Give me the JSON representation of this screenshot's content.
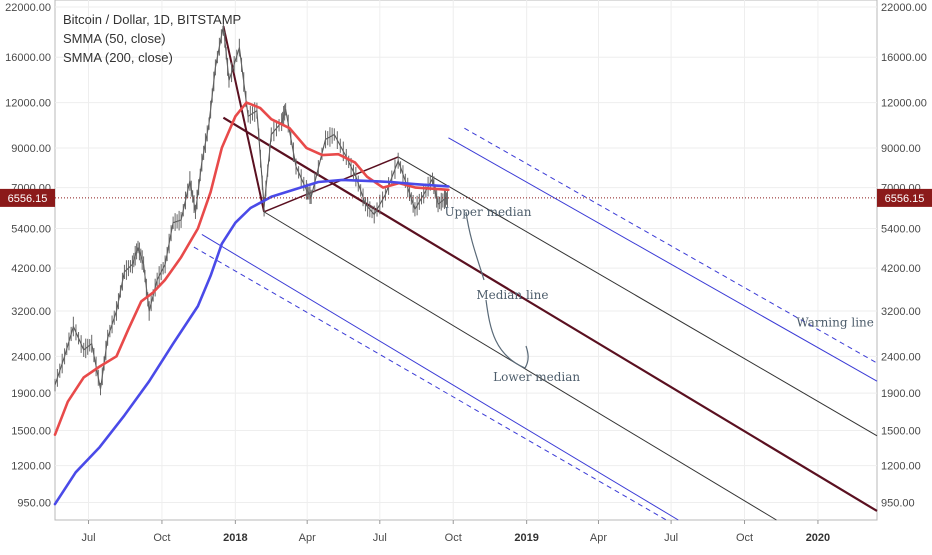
{
  "chart_data": {
    "type": "line",
    "title": "Bitcoin / Dollar, 1D, BITSTAMP",
    "legend": [
      "Bitcoin / Dollar, 1D, BITSTAMP",
      "SMMA (50, close)",
      "SMMA (200, close)"
    ],
    "y_scale": "log",
    "ylim": [
      850,
      23000
    ],
    "xlim": [
      "2017-05-20",
      "2020-03-15"
    ],
    "y_ticks": [
      "22000.00",
      "16000.00",
      "12000.00",
      "9000.00",
      "7000.00",
      "5400.00",
      "4200.00",
      "3200.00",
      "2400.00",
      "1900.00",
      "1500.00",
      "1200.00",
      "950.00"
    ],
    "x_ticks": [
      {
        "date": "2017-07-01",
        "label": "Jul",
        "bold": false
      },
      {
        "date": "2017-10-01",
        "label": "Oct",
        "bold": false
      },
      {
        "date": "2018-01-01",
        "label": "2018",
        "bold": true
      },
      {
        "date": "2018-04-01",
        "label": "Apr",
        "bold": false
      },
      {
        "date": "2018-07-01",
        "label": "Jul",
        "bold": false
      },
      {
        "date": "2018-10-01",
        "label": "Oct",
        "bold": false
      },
      {
        "date": "2019-01-01",
        "label": "2019",
        "bold": true
      },
      {
        "date": "2019-04-01",
        "label": "Apr",
        "bold": false
      },
      {
        "date": "2019-07-01",
        "label": "Jul",
        "bold": false
      },
      {
        "date": "2019-10-01",
        "label": "Oct",
        "bold": false
      },
      {
        "date": "2020-01-01",
        "label": "2020",
        "bold": true
      }
    ],
    "current_price": {
      "value": 6556.15,
      "label": "6556.15",
      "color": "#8b1a1a"
    },
    "series": [
      {
        "name": "Bitcoin / Dollar, 1D, BITSTAMP",
        "kind": "price",
        "color": "#555555",
        "points": [
          [
            "2017-05-20",
            2000
          ],
          [
            "2017-06-01",
            2400
          ],
          [
            "2017-06-12",
            2900
          ],
          [
            "2017-06-25",
            2500
          ],
          [
            "2017-07-05",
            2600
          ],
          [
            "2017-07-16",
            1950
          ],
          [
            "2017-07-25",
            2700
          ],
          [
            "2017-08-05",
            3200
          ],
          [
            "2017-08-15",
            4100
          ],
          [
            "2017-08-25",
            4300
          ],
          [
            "2017-09-01",
            4800
          ],
          [
            "2017-09-08",
            4300
          ],
          [
            "2017-09-15",
            3200
          ],
          [
            "2017-09-25",
            3900
          ],
          [
            "2017-10-05",
            4300
          ],
          [
            "2017-10-15",
            5600
          ],
          [
            "2017-10-25",
            5700
          ],
          [
            "2017-11-05",
            7300
          ],
          [
            "2017-11-12",
            6000
          ],
          [
            "2017-11-20",
            8200
          ],
          [
            "2017-11-29",
            10500
          ],
          [
            "2017-12-07",
            15000
          ],
          [
            "2017-12-17",
            19500
          ],
          [
            "2017-12-24",
            13800
          ],
          [
            "2018-01-06",
            17000
          ],
          [
            "2018-01-17",
            11000
          ],
          [
            "2018-01-28",
            11400
          ],
          [
            "2018-02-06",
            6200
          ],
          [
            "2018-02-15",
            9800
          ],
          [
            "2018-02-28",
            10600
          ],
          [
            "2018-03-05",
            11500
          ],
          [
            "2018-03-18",
            8000
          ],
          [
            "2018-03-31",
            6900
          ],
          [
            "2018-04-06",
            6600
          ],
          [
            "2018-04-24",
            9500
          ],
          [
            "2018-05-05",
            9800
          ],
          [
            "2018-05-20",
            8500
          ],
          [
            "2018-06-01",
            7500
          ],
          [
            "2018-06-13",
            6300
          ],
          [
            "2018-06-24",
            5900
          ],
          [
            "2018-07-08",
            6700
          ],
          [
            "2018-07-24",
            8300
          ],
          [
            "2018-08-05",
            7000
          ],
          [
            "2018-08-14",
            6100
          ],
          [
            "2018-08-25",
            6700
          ],
          [
            "2018-09-05",
            7400
          ],
          [
            "2018-09-12",
            6300
          ],
          [
            "2018-09-20",
            6500
          ],
          [
            "2018-09-25",
            6556
          ]
        ]
      },
      {
        "name": "SMMA (50, close)",
        "kind": "smma",
        "color": "#e84a4a",
        "points": [
          [
            "2017-05-20",
            1460
          ],
          [
            "2017-06-05",
            1800
          ],
          [
            "2017-06-25",
            2100
          ],
          [
            "2017-07-15",
            2250
          ],
          [
            "2017-08-05",
            2400
          ],
          [
            "2017-08-20",
            2850
          ],
          [
            "2017-09-05",
            3400
          ],
          [
            "2017-09-20",
            3600
          ],
          [
            "2017-10-05",
            3900
          ],
          [
            "2017-10-25",
            4500
          ],
          [
            "2017-11-15",
            5400
          ],
          [
            "2017-12-01",
            6800
          ],
          [
            "2017-12-15",
            9000
          ],
          [
            "2018-01-01",
            11000
          ],
          [
            "2018-01-15",
            12000
          ],
          [
            "2018-02-01",
            11600
          ],
          [
            "2018-02-15",
            10800
          ],
          [
            "2018-03-10",
            10200
          ],
          [
            "2018-03-31",
            9000
          ],
          [
            "2018-04-20",
            8600
          ],
          [
            "2018-05-10",
            8650
          ],
          [
            "2018-05-31",
            8200
          ],
          [
            "2018-06-15",
            7500
          ],
          [
            "2018-07-05",
            7000
          ],
          [
            "2018-07-25",
            7200
          ],
          [
            "2018-08-15",
            7000
          ],
          [
            "2018-09-05",
            6950
          ],
          [
            "2018-09-25",
            6900
          ]
        ]
      },
      {
        "name": "SMMA (200, close)",
        "kind": "smma",
        "color": "#4a4ae8",
        "points": [
          [
            "2017-05-20",
            940
          ],
          [
            "2017-06-15",
            1150
          ],
          [
            "2017-07-15",
            1350
          ],
          [
            "2017-08-15",
            1650
          ],
          [
            "2017-09-15",
            2050
          ],
          [
            "2017-10-15",
            2600
          ],
          [
            "2017-11-15",
            3300
          ],
          [
            "2017-12-01",
            4000
          ],
          [
            "2017-12-15",
            4900
          ],
          [
            "2018-01-01",
            5600
          ],
          [
            "2018-01-20",
            6150
          ],
          [
            "2018-02-15",
            6600
          ],
          [
            "2018-03-15",
            6900
          ],
          [
            "2018-04-15",
            7250
          ],
          [
            "2018-05-15",
            7350
          ],
          [
            "2018-06-15",
            7300
          ],
          [
            "2018-07-15",
            7250
          ],
          [
            "2018-08-15",
            7150
          ],
          [
            "2018-09-25",
            7050
          ]
        ]
      }
    ],
    "pitchfork": {
      "pivots": [
        [
          "2017-12-17",
          19500
        ],
        [
          "2018-02-06",
          6000
        ],
        [
          "2018-07-24",
          8500
        ]
      ],
      "lines": [
        {
          "name": "Median line",
          "color": "#5a1020",
          "from": [
            "2017-12-17",
            10900
          ],
          "to": [
            "2020-03-15",
            900
          ]
        },
        {
          "name": "Upper median",
          "color": "#333333",
          "from": [
            "2018-07-24",
            8500
          ],
          "to": [
            "2020-03-15",
            1450
          ]
        },
        {
          "name": "Lower median",
          "color": "#333333",
          "from": [
            "2018-02-06",
            6000
          ],
          "to": [
            "2019-11-10",
            850
          ]
        },
        {
          "name": "Warning line",
          "color": "#3b3bd6",
          "from": [
            "2018-09-25",
            9600
          ],
          "to": [
            "2020-03-15",
            2050
          ]
        },
        {
          "name": "Warning line dashed",
          "color": "#3b3bd6",
          "from": [
            "2018-10-15",
            10200
          ],
          "to": [
            "2020-03-15",
            2300
          ],
          "dashed": true
        },
        {
          "name": "Lower warning line",
          "color": "#3b3bd6",
          "from": [
            "2017-11-20",
            5200
          ],
          "to": [
            "2019-07-10",
            850
          ]
        },
        {
          "name": "Lower warning line dashed",
          "color": "#3b3bd6",
          "from": [
            "2017-11-10",
            4800
          ],
          "to": [
            "2019-06-25",
            850
          ],
          "dashed": true
        }
      ]
    },
    "annotations": [
      {
        "text": "Upper median",
        "date": "2018-09-20",
        "value": 5850
      },
      {
        "text": "Median line",
        "date": "2018-10-30",
        "value": 3450
      },
      {
        "text": "Lower median",
        "date": "2018-11-20",
        "value": 2050
      },
      {
        "text": "Warning line",
        "date": "2019-12-05",
        "value": 2900
      }
    ],
    "grid": true
  }
}
